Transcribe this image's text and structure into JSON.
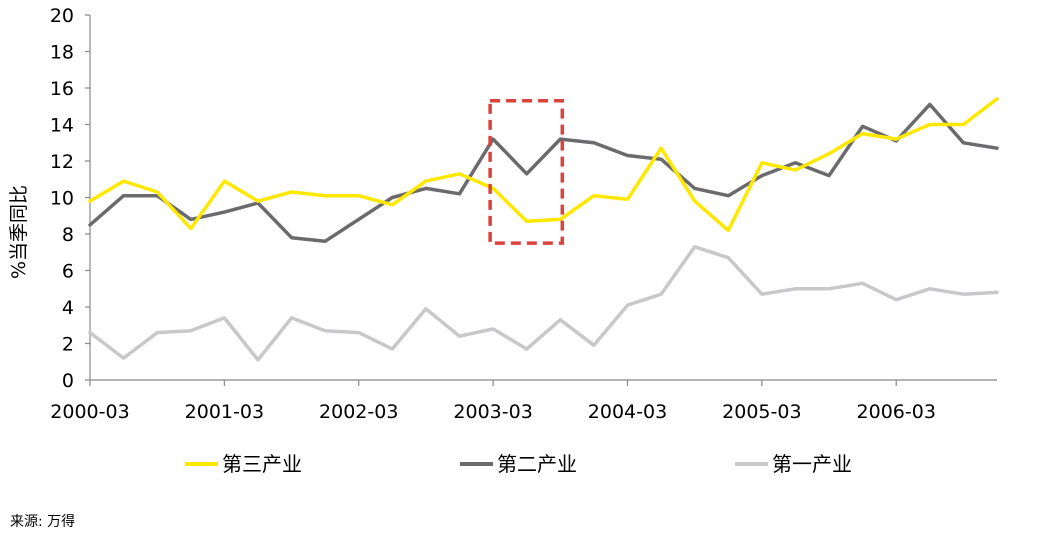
{
  "chart_data": {
    "type": "line",
    "title": "",
    "xlabel": "",
    "ylabel": "%当季同比",
    "ylim": [
      0,
      20
    ],
    "yticks": [
      0,
      2,
      4,
      6,
      8,
      10,
      12,
      14,
      16,
      18,
      20
    ],
    "xtick_labels": [
      "2000-03",
      "2001-03",
      "2002-03",
      "2003-03",
      "2004-03",
      "2005-03",
      "2006-03"
    ],
    "x": [
      "2000-03",
      "2000-06",
      "2000-09",
      "2000-12",
      "2001-03",
      "2001-06",
      "2001-09",
      "2001-12",
      "2002-03",
      "2002-06",
      "2002-09",
      "2002-12",
      "2003-03",
      "2003-06",
      "2003-09",
      "2003-12",
      "2004-03",
      "2004-06",
      "2004-09",
      "2004-12",
      "2005-03",
      "2005-06",
      "2005-09",
      "2005-12",
      "2006-03",
      "2006-06",
      "2006-09",
      "2006-12"
    ],
    "series": [
      {
        "name": "第三产业",
        "color": "#ffe800",
        "values": [
          9.8,
          10.9,
          10.3,
          8.3,
          10.9,
          9.8,
          10.3,
          10.1,
          10.1,
          9.6,
          10.9,
          11.3,
          10.5,
          8.7,
          8.8,
          10.1,
          9.9,
          12.7,
          9.8,
          8.2,
          11.9,
          11.5,
          12.4,
          13.5,
          13.2,
          14.0,
          14.0,
          15.4
        ]
      },
      {
        "name": "第二产业",
        "color": "#6b6b6d",
        "values": [
          8.5,
          10.1,
          10.1,
          8.8,
          9.2,
          9.7,
          7.8,
          7.6,
          8.8,
          10.0,
          10.5,
          10.2,
          13.2,
          11.3,
          13.2,
          13.0,
          12.3,
          12.1,
          10.5,
          10.1,
          11.2,
          11.9,
          11.2,
          13.9,
          13.1,
          15.1,
          13.0,
          12.7
        ]
      },
      {
        "name": "第一产业",
        "color": "#c8c8cb",
        "values": [
          2.6,
          1.2,
          2.6,
          2.7,
          3.4,
          1.1,
          3.4,
          2.7,
          2.6,
          1.7,
          3.9,
          2.4,
          2.8,
          1.7,
          3.3,
          1.9,
          4.1,
          4.7,
          7.3,
          6.7,
          4.7,
          5.0,
          5.0,
          5.3,
          4.4,
          5.0,
          4.7,
          4.8
        ]
      }
    ],
    "highlight_box": {
      "x_range": [
        "2003-03",
        "2003-09"
      ],
      "y_range": [
        7.5,
        15.3
      ],
      "color": "#d9433a"
    },
    "legend_placement": "bottom",
    "grid": false
  },
  "source_text": "来源: 万得"
}
